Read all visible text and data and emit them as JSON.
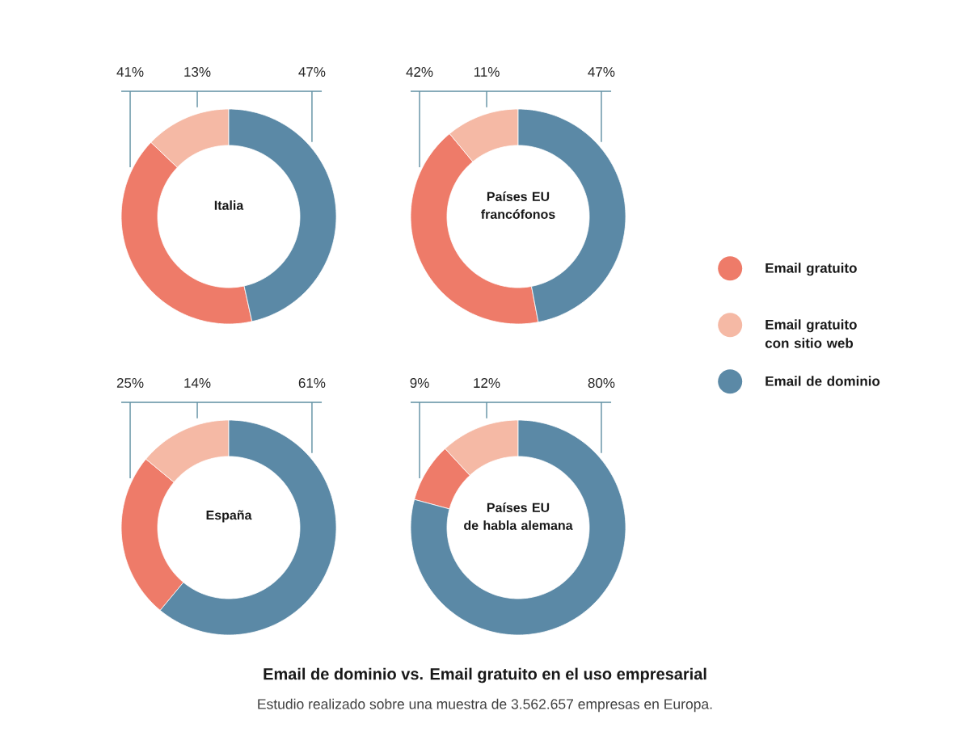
{
  "chart_data": [
    {
      "type": "donut",
      "title": "Italia",
      "categories": [
        "Email gratuito",
        "Email gratuito\ncon sitio web",
        "Email de dominio"
      ],
      "values": [
        41,
        13,
        47
      ],
      "value_labels": [
        "41%",
        "13%",
        "47%"
      ],
      "colors": [
        "#ee7b69",
        "#f5b9a5",
        "#5b89a6"
      ],
      "legend": "right"
    },
    {
      "type": "donut",
      "title": "Países EU\nfrancófonos",
      "values": [
        42,
        11,
        47
      ],
      "value_labels": [
        "42%",
        "11%",
        "47%"
      ],
      "colors": [
        "#ee7b69",
        "#f5b9a5",
        "#5b89a6"
      ]
    },
    {
      "type": "donut",
      "title": "España",
      "values": [
        25,
        14,
        61
      ],
      "value_labels": [
        "25%",
        "14%",
        "61%"
      ],
      "colors": [
        "#ee7b69",
        "#f5b9a5",
        "#5b89a6"
      ]
    },
    {
      "type": "donut",
      "title": "Países EU\nde habla alemana",
      "values": [
        9,
        12,
        80
      ],
      "value_labels": [
        "9%",
        "12%",
        "80%"
      ],
      "colors": [
        "#ee7b69",
        "#f5b9a5",
        "#5b89a6"
      ]
    },
    {
      "type": "other",
      "title": "Email de dominio vs. Email gratuito en el uso empresarial",
      "subtitle": "Estudio realizado sobre una muestra de 3.562.657 empresas en Europa."
    }
  ]
}
